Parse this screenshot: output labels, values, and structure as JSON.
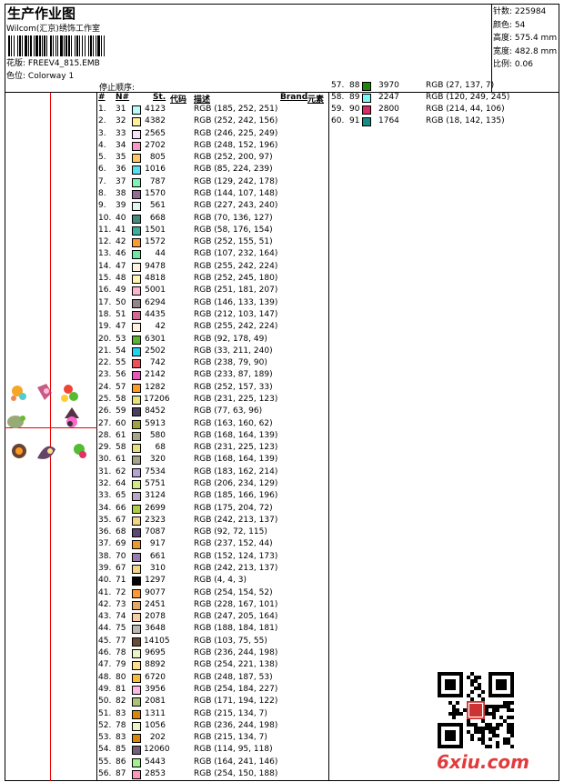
{
  "header": {
    "title": "生产作业图",
    "company": "Wilcom(汇京)绣饰工作室",
    "design_label": "花版:",
    "design_value": "FREEV4_815.EMB",
    "colorway_label": "色位:",
    "colorway_value": "Colorway 1"
  },
  "info": [
    {
      "label": "针数:",
      "value": "225984"
    },
    {
      "label": "颜色:",
      "value": "54"
    },
    {
      "label": "高度:",
      "value": "575.4 mm"
    },
    {
      "label": "宽度:",
      "value": "482.8 mm"
    },
    {
      "label": "比例:",
      "value": "0.06"
    }
  ],
  "table": {
    "stop_sequence_label": "停止顺序:",
    "headers": {
      "idx": "#",
      "n": "N#",
      "st": "St.",
      "code": "代码",
      "desc": "描述",
      "brand": "Brand",
      "element": "元素"
    },
    "rows": [
      [
        "1.",
        "31",
        "4123",
        185,
        252,
        251
      ],
      [
        "2.",
        "32",
        "4382",
        252,
        242,
        156
      ],
      [
        "3.",
        "33",
        "2565",
        246,
        225,
        249
      ],
      [
        "4.",
        "34",
        "2702",
        248,
        152,
        196
      ],
      [
        "5.",
        "35",
        "805",
        252,
        200,
        97
      ],
      [
        "6.",
        "36",
        "1016",
        85,
        224,
        239
      ],
      [
        "7.",
        "37",
        "787",
        129,
        242,
        178
      ],
      [
        "8.",
        "38",
        "1570",
        144,
        107,
        148
      ],
      [
        "9.",
        "39",
        "561",
        227,
        243,
        240
      ],
      [
        "10.",
        "40",
        "668",
        70,
        136,
        127
      ],
      [
        "11.",
        "41",
        "1501",
        58,
        176,
        154
      ],
      [
        "12.",
        "42",
        "1572",
        252,
        155,
        51
      ],
      [
        "13.",
        "46",
        "44",
        107,
        232,
        164
      ],
      [
        "14.",
        "47",
        "9478",
        255,
        242,
        224
      ],
      [
        "15.",
        "48",
        "4818",
        252,
        245,
        180
      ],
      [
        "16.",
        "49",
        "5001",
        251,
        181,
        207
      ],
      [
        "17.",
        "50",
        "6294",
        146,
        133,
        139
      ],
      [
        "18.",
        "51",
        "4435",
        212,
        103,
        147
      ],
      [
        "19.",
        "47",
        "42",
        255,
        242,
        224
      ],
      [
        "20.",
        "53",
        "6301",
        92,
        178,
        49
      ],
      [
        "21.",
        "54",
        "2502",
        33,
        211,
        240
      ],
      [
        "22.",
        "55",
        "742",
        238,
        79,
        90
      ],
      [
        "23.",
        "56",
        "2142",
        233,
        87,
        189
      ],
      [
        "24.",
        "57",
        "1282",
        252,
        157,
        33
      ],
      [
        "25.",
        "58",
        "17206",
        231,
        225,
        123
      ],
      [
        "26.",
        "59",
        "8452",
        77,
        63,
        96
      ],
      [
        "27.",
        "60",
        "5913",
        163,
        160,
        62
      ],
      [
        "28.",
        "61",
        "580",
        168,
        164,
        139
      ],
      [
        "29.",
        "58",
        "68",
        231,
        225,
        123
      ],
      [
        "30.",
        "61",
        "320",
        168,
        164,
        139
      ],
      [
        "31.",
        "62",
        "7534",
        183,
        162,
        214
      ],
      [
        "32.",
        "64",
        "5751",
        206,
        234,
        129
      ],
      [
        "33.",
        "65",
        "3124",
        185,
        166,
        196
      ],
      [
        "34.",
        "66",
        "2699",
        175,
        204,
        72
      ],
      [
        "35.",
        "67",
        "2323",
        242,
        213,
        137
      ],
      [
        "36.",
        "68",
        "7087",
        92,
        72,
        115
      ],
      [
        "37.",
        "69",
        "917",
        237,
        152,
        44
      ],
      [
        "38.",
        "70",
        "661",
        152,
        124,
        173
      ],
      [
        "39.",
        "67",
        "310",
        242,
        213,
        137
      ],
      [
        "40.",
        "71",
        "1297",
        4,
        4,
        3
      ],
      [
        "41.",
        "72",
        "9077",
        254,
        154,
        52
      ],
      [
        "42.",
        "73",
        "2451",
        228,
        167,
        101
      ],
      [
        "43.",
        "74",
        "2078",
        247,
        205,
        164
      ],
      [
        "44.",
        "75",
        "3648",
        188,
        184,
        181
      ],
      [
        "45.",
        "77",
        "14105",
        103,
        75,
        55
      ],
      [
        "46.",
        "78",
        "9695",
        236,
        244,
        198
      ],
      [
        "47.",
        "79",
        "8892",
        254,
        221,
        138
      ],
      [
        "48.",
        "80",
        "6720",
        248,
        187,
        53
      ],
      [
        "49.",
        "81",
        "3956",
        254,
        184,
        227
      ],
      [
        "50.",
        "82",
        "2081",
        171,
        194,
        122
      ],
      [
        "51.",
        "83",
        "1311",
        215,
        134,
        7
      ],
      [
        "52.",
        "78",
        "1056",
        236,
        244,
        198
      ],
      [
        "53.",
        "83",
        "202",
        215,
        134,
        7
      ],
      [
        "54.",
        "85",
        "12060",
        114,
        95,
        118
      ],
      [
        "55.",
        "86",
        "5443",
        164,
        241,
        146
      ],
      [
        "56.",
        "87",
        "2853",
        254,
        150,
        188
      ],
      [
        "57.",
        "88",
        "3970",
        27,
        137,
        7
      ],
      [
        "58.",
        "89",
        "2247",
        120,
        249,
        245
      ],
      [
        "59.",
        "90",
        "2800",
        214,
        44,
        106
      ],
      [
        "60.",
        "91",
        "1764",
        18,
        142,
        135
      ]
    ]
  },
  "watermark": "6xiu.com"
}
